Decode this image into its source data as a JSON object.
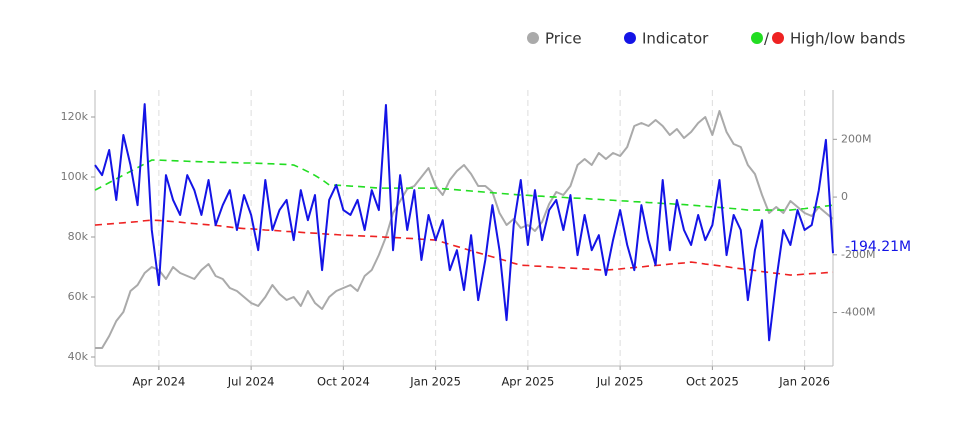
{
  "chart_data": {
    "type": "line",
    "legend_separator": "/",
    "categories": [
      null,
      null,
      null,
      null,
      null,
      null,
      null,
      null,
      null,
      "Apr 2024",
      null,
      null,
      null,
      null,
      null,
      null,
      null,
      null,
      null,
      null,
      null,
      null,
      "Jul 2024",
      null,
      null,
      null,
      null,
      null,
      null,
      null,
      null,
      null,
      null,
      null,
      null,
      "Oct 2024",
      null,
      null,
      null,
      null,
      null,
      null,
      null,
      null,
      null,
      null,
      null,
      null,
      "Jan 2025",
      null,
      null,
      null,
      null,
      null,
      null,
      null,
      null,
      null,
      null,
      null,
      null,
      "Apr 2025",
      null,
      null,
      null,
      null,
      null,
      null,
      null,
      null,
      null,
      null,
      null,
      null,
      "Jul 2025",
      null,
      null,
      null,
      null,
      null,
      null,
      null,
      null,
      null,
      null,
      null,
      null,
      "Oct 2025",
      null,
      null,
      null,
      null,
      null,
      null,
      null,
      null,
      null,
      null,
      null,
      null,
      "Jan 2026",
      null,
      null,
      null,
      null
    ],
    "ylim": [
      37000,
      127000
    ],
    "yticks": [
      {
        "value": 40000,
        "label": "40k"
      },
      {
        "value": 60000,
        "label": "60k"
      },
      {
        "value": 80000,
        "label": "80k"
      },
      {
        "value": 100000,
        "label": "100k"
      },
      {
        "value": 120000,
        "label": "120k"
      }
    ],
    "y2lim": [
      -585000000.0,
      350000000.0
    ],
    "y2ticks": [
      {
        "value": -400000000.0,
        "label": "-400M"
      },
      {
        "value": -200000000.0,
        "label": "-200M"
      },
      0,
      {
        "value": 200000000.0,
        "label": "200M"
      }
    ],
    "grid": "x",
    "legend": "top-right",
    "series": [
      {
        "name": "Price",
        "color": "#aaaaaa",
        "values": [
          43000,
          43000,
          47000,
          52000,
          55000,
          62000,
          64000,
          68000,
          70000,
          69000,
          66000,
          70000,
          68000,
          67000,
          66000,
          69000,
          71000,
          67000,
          66000,
          63000,
          62000,
          60000,
          58000,
          57000,
          60000,
          64000,
          61000,
          59000,
          60000,
          57000,
          62000,
          58000,
          56000,
          60000,
          62000,
          63000,
          64000,
          62000,
          67000,
          69000,
          74000,
          80000,
          88000,
          92000,
          96000,
          97000,
          100000,
          103000,
          97000,
          94000,
          99000,
          102000,
          104000,
          101000,
          97000,
          97000,
          95000,
          88000,
          84000,
          86000,
          83000,
          84000,
          82000,
          85000,
          91000,
          95000,
          94000,
          97000,
          104000,
          106000,
          104000,
          108000,
          106000,
          108000,
          107000,
          110000,
          117000,
          118000,
          117000,
          119000,
          117000,
          114000,
          116000,
          113000,
          115000,
          118000,
          120000,
          114000,
          122000,
          115000,
          111000,
          110000,
          104000,
          101000,
          94000,
          88000,
          90000,
          88000,
          92000,
          90000,
          88000,
          87000,
          90000,
          88000,
          86000
        ]
      },
      {
        "name": "Indicator",
        "color": "#1414e6",
        "axis": "y2",
        "values": [
          111000000.0,
          76000000.0,
          163000000.0,
          -10000000.0,
          215000000.0,
          111000000.0,
          -28000000.0,
          322000000.0,
          -114000000.0,
          -305000000.0,
          76000000.0,
          -10000000.0,
          -62000000.0,
          76000000.0,
          24000000.0,
          -62000000.0,
          59000000.0,
          -97000000.0,
          -28000000.0,
          24000000.0,
          -114000000.0,
          7000000.0,
          -62000000.0,
          -184000000.0,
          59000000.0,
          -114000000.0,
          -45000000.0,
          -10000000.0,
          -149000000.0,
          24000000.0,
          -80000000.0,
          7000000.0,
          -253000000.0,
          -10000000.0,
          42000000.0,
          -45000000.0,
          -62000000.0,
          -10000000.0,
          -114000000.0,
          24000000.0,
          -45000000.0,
          319000000.0,
          -184000000.0,
          76000000.0,
          -114000000.0,
          24000000.0,
          -218000000.0,
          -62000000.0,
          -149000000.0,
          -80000000.0,
          -253000000.0,
          -184000000.0,
          -322000000.0,
          -132000000.0,
          -357000000.0,
          -218000000.0,
          -28000000.0,
          -184000000.0,
          -426000000.0,
          -97000000.0,
          59000000.0,
          -166000000.0,
          24000000.0,
          -149000000.0,
          -45000000.0,
          -10000000.0,
          -114000000.0,
          7000000.0,
          -201000000.0,
          -62000000.0,
          -184000000.0,
          -132000000.0,
          -270000000.0,
          -149000000.0,
          -45000000.0,
          -166000000.0,
          -253000000.0,
          -28000000.0,
          -149000000.0,
          -235000000.0,
          59000000.0,
          -184000000.0,
          -10000000.0,
          -114000000.0,
          -166000000.0,
          -62000000.0,
          -149000000.0,
          -97000000.0,
          59000000.0,
          -201000000.0,
          -62000000.0,
          -114000000.0,
          -357000000.0,
          -184000000.0,
          -80000000.0,
          -496000000.0,
          -288000000.0,
          -114000000.0,
          -166000000.0,
          -45000000.0,
          -114000000.0,
          -97000000.0,
          24000000.0,
          198000000.0,
          -194210000.0
        ],
        "value_labels": [
          null,
          null,
          null,
          null,
          null,
          null,
          null,
          null,
          null,
          null,
          null,
          null,
          null,
          null,
          null,
          null,
          null,
          null,
          null,
          null,
          null,
          null,
          null,
          null,
          null,
          null,
          null,
          null,
          null,
          null,
          null,
          null,
          null,
          null,
          null,
          null,
          null,
          null,
          null,
          null,
          null,
          null,
          null,
          null,
          null,
          null,
          null,
          null,
          null,
          null,
          null,
          null,
          null,
          null,
          null,
          null,
          null,
          null,
          null,
          null,
          null,
          null,
          null,
          null,
          null,
          null,
          null,
          null,
          null,
          null,
          null,
          null,
          null,
          null,
          null,
          null,
          null,
          null,
          null,
          null,
          null,
          null,
          null,
          null,
          null,
          null,
          null,
          null,
          null,
          null,
          null,
          null,
          null,
          null,
          null,
          null,
          null,
          null,
          null,
          null,
          null,
          null,
          null,
          null,
          "-194.21M"
        ]
      },
      {
        "name": "High/low bands",
        "color": "#22dd22",
        "axis": "y2",
        "dashed": true,
        "values": [
          24000000.0,
          37000000.0,
          50000000.0,
          63000000.0,
          76000000.0,
          89000000.0,
          102000000.0,
          115000000.0,
          128000000.0,
          128000000.0,
          127000000.0,
          126000000.0,
          125000000.0,
          124000000.0,
          123000000.0,
          122000000.0,
          122000000.0,
          121000000.0,
          120000000.0,
          120000000.0,
          119000000.0,
          118000000.0,
          118000000.0,
          117000000.0,
          116000000.0,
          115000000.0,
          114000000.0,
          113000000.0,
          111000000.0,
          100000000.0,
          88000000.0,
          75000000.0,
          60000000.0,
          42000000.0,
          41000000.0,
          40000000.0,
          38000000.0,
          37000000.0,
          35000000.0,
          33000000.0,
          31000000.0,
          31000000.0,
          31000000.0,
          31000000.0,
          31000000.0,
          31000000.0,
          31000000.0,
          31000000.0,
          31000000.0,
          29000000.0,
          27000000.0,
          25000000.0,
          23000000.0,
          21000000.0,
          19000000.0,
          17000000.0,
          15000000.0,
          13000000.0,
          11000000.0,
          9000000.0,
          7000000.0,
          6000000.0,
          4000000.0,
          3000000.0,
          1000000.0,
          0,
          -1000000.0,
          -3000000.0,
          -4000000.0,
          -5000000.0,
          -7000000.0,
          -8000000.0,
          -10000000.0,
          -11000000.0,
          -13000000.0,
          -14000000.0,
          -16000000.0,
          -17000000.0,
          -19000000.0,
          -20000000.0,
          -22000000.0,
          -23000000.0,
          -25000000.0,
          -26000000.0,
          -28000000.0,
          -30000000.0,
          -32000000.0,
          -34000000.0,
          -36000000.0,
          -38000000.0,
          -40000000.0,
          -42000000.0,
          -45000000.0,
          -45000000.0,
          -45000000.0,
          -45000000.0,
          -45000000.0,
          -45000000.0,
          -45000000.0,
          -42000000.0,
          -40000000.0,
          -37000000.0,
          -34000000.0,
          -31000000.0,
          -28000000.0
        ]
      },
      {
        "color": "#ee2222",
        "axis": "y2",
        "dashed": true,
        "values": [
          -97000000.0,
          -95000000.0,
          -93000000.0,
          -91000000.0,
          -89000000.0,
          -87000000.0,
          -85000000.0,
          -82000000.0,
          -80000000.0,
          -81000000.0,
          -83000000.0,
          -85000000.0,
          -87000000.0,
          -90000000.0,
          -92000000.0,
          -94000000.0,
          -96000000.0,
          -98000000.0,
          -101000000.0,
          -104000000.0,
          -107000000.0,
          -109000000.0,
          -110000000.0,
          -112000000.0,
          -114000000.0,
          -115000000.0,
          -117000000.0,
          -119000000.0,
          -120000000.0,
          -122000000.0,
          -124000000.0,
          -125000000.0,
          -127000000.0,
          -129000000.0,
          -130000000.0,
          -132000000.0,
          -133000000.0,
          -134000000.0,
          -135000000.0,
          -136000000.0,
          -137000000.0,
          -139000000.0,
          -140000000.0,
          -141000000.0,
          -143000000.0,
          -144000000.0,
          -146000000.0,
          -147000000.0,
          -149000000.0,
          -156000000.0,
          -164000000.0,
          -171000000.0,
          -178000000.0,
          -186000000.0,
          -193000000.0,
          -200000000.0,
          -207000000.0,
          -214000000.0,
          -221000000.0,
          -229000000.0,
          -236000000.0,
          -237000000.0,
          -239000000.0,
          -240000000.0,
          -242000000.0,
          -243000000.0,
          -245000000.0,
          -246000000.0,
          -247000000.0,
          -249000000.0,
          -250000000.0,
          -252000000.0,
          -253000000.0,
          -251000000.0,
          -249000000.0,
          -246000000.0,
          -244000000.0,
          -242000000.0,
          -239000000.0,
          -237000000.0,
          -235000000.0,
          -232000000.0,
          -230000000.0,
          -228000000.0,
          -225000000.0,
          -228000000.0,
          -232000000.0,
          -235000000.0,
          -238000000.0,
          -241000000.0,
          -245000000.0,
          -248000000.0,
          -251000000.0,
          -254000000.0,
          -258000000.0,
          -261000000.0,
          -264000000.0,
          -267000000.0,
          -270000000.0,
          -269000000.0,
          -267000000.0,
          -265000000.0,
          -264000000.0,
          -262000000.0,
          -260000000.0
        ]
      }
    ]
  }
}
